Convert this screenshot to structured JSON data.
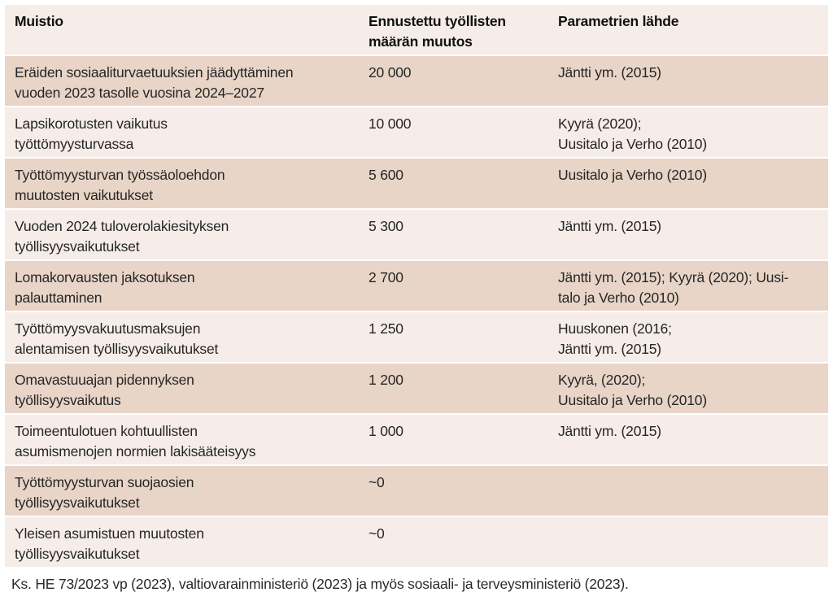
{
  "table": {
    "headers": {
      "col1": [
        "Muistio"
      ],
      "col2": [
        "Ennustettu työllisten",
        "määrän muutos"
      ],
      "col3": [
        "Parametrien lähde"
      ]
    },
    "rows": [
      {
        "muistio": [
          "Eräiden sosiaaliturvaetuuksien jäädyttäminen",
          "vuoden 2023 tasolle vuosina 2024–2027"
        ],
        "muutos": "20 000",
        "lahde": [
          "Jäntti ym. (2015)"
        ]
      },
      {
        "muistio": [
          "Lapsikorotusten vaikutus",
          "työttömyysturvassa"
        ],
        "muutos": "10 000",
        "lahde": [
          "Kyyrä (2020);",
          "Uusitalo ja Verho (2010)"
        ]
      },
      {
        "muistio": [
          "Työttömyysturvan työssäoloehdon",
          "muutosten vaikutukset"
        ],
        "muutos": "5 600",
        "lahde": [
          "Uusitalo ja Verho (2010)"
        ]
      },
      {
        "muistio": [
          "Vuoden 2024 tuloverolakiesityksen",
          "työllisyysvaikutukset"
        ],
        "muutos": "5 300",
        "lahde": [
          "Jäntti ym. (2015)"
        ]
      },
      {
        "muistio": [
          "Lomakorvausten jaksotuksen",
          "palauttaminen"
        ],
        "muutos": "2 700",
        "lahde": [
          "Jäntti ym. (2015); Kyyrä (2020); Uusi-",
          "talo ja Verho (2010)"
        ]
      },
      {
        "muistio": [
          "Työttömyysvakuutusmaksujen",
          "alentamisen työllisyysvaikutukset"
        ],
        "muutos": "1 250",
        "lahde": [
          "Huuskonen (2016;",
          "Jäntti ym. (2015)"
        ]
      },
      {
        "muistio": [
          "Omavastuuajan pidennyksen",
          "työllisyysvaikutus"
        ],
        "muutos": "1 200",
        "lahde": [
          "Kyyrä, (2020);",
          "Uusitalo ja Verho (2010)"
        ]
      },
      {
        "muistio": [
          "Toimeentulotuen kohtuullisten",
          "asumismenojen normien lakisääteisyys"
        ],
        "muutos": "1 000",
        "lahde": [
          "Jäntti ym. (2015)"
        ]
      },
      {
        "muistio": [
          "Työttömyysturvan suojaosien",
          "työllisyysvaikutukset"
        ],
        "muutos": "~0",
        "lahde": []
      },
      {
        "muistio": [
          "Yleisen asumistuen muutosten",
          "työllisyysvaikutukset"
        ],
        "muutos": "~0",
        "lahde": []
      }
    ]
  },
  "footnote": "Ks. HE 73/2023 vp (2023), valtiovarainministeriö (2023) ja myös sosiaali- ja terveysministeriö (2023).",
  "colors": {
    "header_bg": "#f6ede8",
    "light_row": "#f6ede8",
    "dark_row": "#e8d5c7"
  }
}
